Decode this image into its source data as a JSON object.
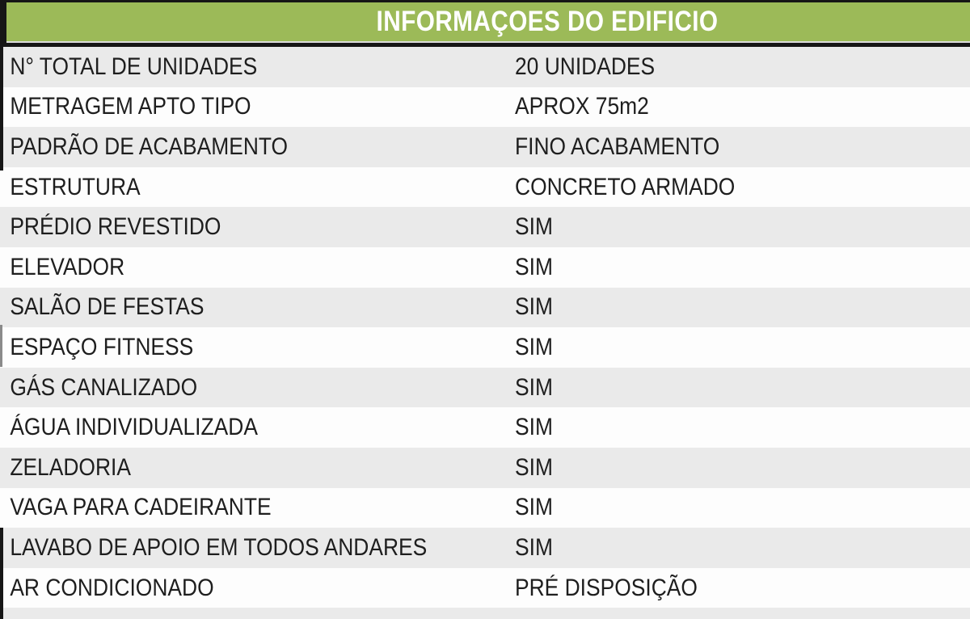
{
  "table": {
    "title": "INFORMAÇOES DO EDIFICIO",
    "rows": [
      {
        "label": "N° TOTAL DE UNIDADES",
        "value": "20 UNIDADES"
      },
      {
        "label": "METRAGEM APTO TIPO",
        "value": "APROX 75m2"
      },
      {
        "label": "PADRÃO DE ACABAMENTO",
        "value": "FINO ACABAMENTO"
      },
      {
        "label": "ESTRUTURA",
        "value": "CONCRETO ARMADO"
      },
      {
        "label": "PRÉDIO REVESTIDO",
        "value": "SIM"
      },
      {
        "label": "ELEVADOR",
        "value": "SIM"
      },
      {
        "label": "SALÃO DE FESTAS",
        "value": "SIM"
      },
      {
        "label": "ESPAÇO FITNESS",
        "value": "SIM"
      },
      {
        "label": "GÁS CANALIZADO",
        "value": "SIM"
      },
      {
        "label": "ÁGUA INDIVIDUALIZADA",
        "value": "SIM"
      },
      {
        "label": "ZELADORIA",
        "value": "SIM"
      },
      {
        "label": "VAGA PARA CADEIRANTE",
        "value": "SIM"
      },
      {
        "label": "LAVABO DE APOIO EM TODOS ANDARES",
        "value": "SIM"
      },
      {
        "label": "AR CONDICIONADO",
        "value": "PRÉ DISPOSIÇÃO"
      }
    ],
    "colors": {
      "header_bg": "#9cba58",
      "header_text": "#ffffff",
      "border": "#161616",
      "row_alt_bg": "#eaeaea",
      "row_bg": "#fdfdfd",
      "text": "#1e1e1e"
    }
  }
}
